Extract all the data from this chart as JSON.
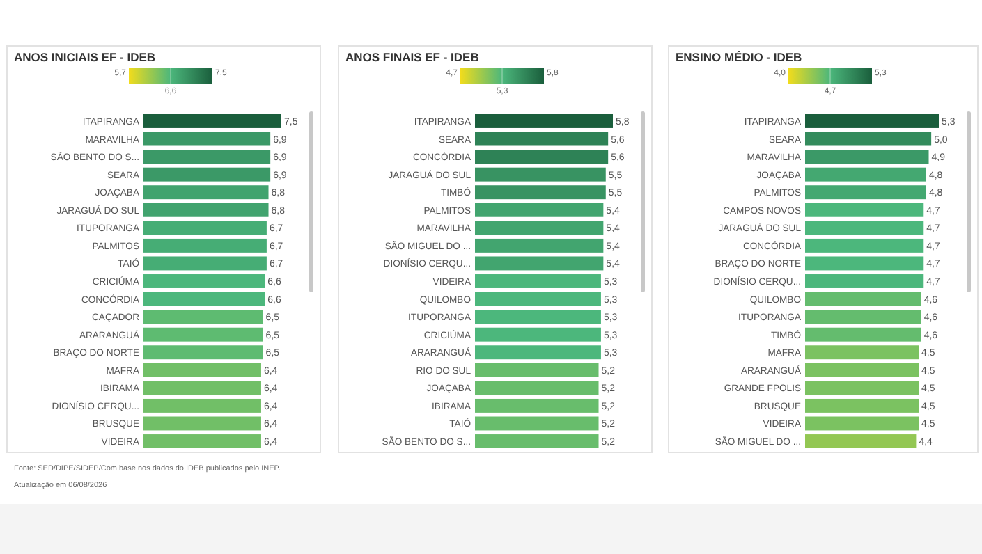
{
  "chart_data": [
    {
      "type": "bar",
      "orientation": "horizontal",
      "title": "ANOS INICIAIS EF - IDEB",
      "data_labels": true,
      "categories": [
        "ITAPIRANGA",
        "MARAVILHA",
        "SÃO BENTO DO S...",
        "SEARA",
        "JOAÇABA",
        "JARAGUÁ DO SUL",
        "ITUPORANGA",
        "PALMITOS",
        "TAIÓ",
        "CRICIÚMA",
        "CONCÓRDIA",
        "CAÇADOR",
        "ARARANGUÁ",
        "BRAÇO DO NORTE",
        "MAFRA",
        "IBIRAMA",
        "DIONÍSIO CERQU...",
        "BRUSQUE",
        "VIDEIRA"
      ],
      "values": [
        7.5,
        6.9,
        6.9,
        6.9,
        6.8,
        6.8,
        6.7,
        6.7,
        6.7,
        6.6,
        6.6,
        6.5,
        6.5,
        6.5,
        6.4,
        6.4,
        6.4,
        6.4,
        6.4
      ],
      "value_labels": [
        "7,5",
        "6,9",
        "6,9",
        "6,9",
        "6,8",
        "6,8",
        "6,7",
        "6,7",
        "6,7",
        "6,6",
        "6,6",
        "6,5",
        "6,5",
        "6,5",
        "6,4",
        "6,4",
        "6,4",
        "6,4",
        "6,4"
      ],
      "colors": [
        "#1a5e3c",
        "#3b9967",
        "#3b9967",
        "#3b9967",
        "#41a36e",
        "#41a36e",
        "#46ad75",
        "#46ad75",
        "#46ad75",
        "#4cb77c",
        "#4cb77c",
        "#5ebb71",
        "#5ebb71",
        "#5ebb71",
        "#71bf67",
        "#71bf67",
        "#71bf67",
        "#71bf67",
        "#71bf67"
      ],
      "annotations": [
        "5,7",
        "6,6",
        "7,5",
        "Fonte: SED/DIPE/SIDEP/Com base nos dados do IDEB publicados pelo INEP.",
        "Atualização em 06/08/2026"
      ]
    },
    {
      "type": "bar",
      "orientation": "horizontal",
      "title": "ANOS FINAIS EF - IDEB",
      "data_labels": true,
      "categories": [
        "ITAPIRANGA",
        "SEARA",
        "CONCÓRDIA",
        "JARAGUÁ DO SUL",
        "TIMBÓ",
        "PALMITOS",
        "MARAVILHA",
        "SÃO MIGUEL DO ...",
        "DIONÍSIO CERQU...",
        "VIDEIRA",
        "QUILOMBO",
        "ITUPORANGA",
        "CRICIÚMA",
        "ARARANGUÁ",
        "RIO DO SUL",
        "JOAÇABA",
        "IBIRAMA",
        "TAIÓ",
        "SÃO BENTO DO S..."
      ],
      "values": [
        5.8,
        5.6,
        5.6,
        5.5,
        5.5,
        5.4,
        5.4,
        5.4,
        5.4,
        5.3,
        5.3,
        5.3,
        5.3,
        5.3,
        5.2,
        5.2,
        5.2,
        5.2,
        5.2
      ],
      "value_labels": [
        "5,8",
        "5,6",
        "5,6",
        "5,5",
        "5,5",
        "5,4",
        "5,4",
        "5,4",
        "5,4",
        "5,3",
        "5,3",
        "5,3",
        "5,3",
        "5,3",
        "5,2",
        "5,2",
        "5,2",
        "5,2",
        "5,2"
      ],
      "colors": [
        "#1a5e3c",
        "#2e8256",
        "#2e8256",
        "#389362",
        "#389362",
        "#42a56f",
        "#42a56f",
        "#42a56f",
        "#42a56f",
        "#4cb77c",
        "#4cb77c",
        "#4cb77c",
        "#4cb77c",
        "#4cb77c",
        "#68bd6c",
        "#68bd6c",
        "#68bd6c",
        "#68bd6c",
        "#68bd6c"
      ],
      "annotations": [
        "4,7",
        "5,3",
        "5,8"
      ]
    },
    {
      "type": "bar",
      "orientation": "horizontal",
      "title": "ENSINO MÉDIO - IDEB",
      "data_labels": true,
      "categories": [
        "ITAPIRANGA",
        "SEARA",
        "MARAVILHA",
        "JOAÇABA",
        "PALMITOS",
        "CAMPOS NOVOS",
        "JARAGUÁ DO SUL",
        "CONCÓRDIA",
        "BRAÇO DO NORTE",
        "DIONÍSIO CERQU...",
        "QUILOMBO",
        "ITUPORANGA",
        "TIMBÓ",
        "MAFRA",
        "ARARANGUÁ",
        "GRANDE FPOLIS",
        "BRUSQUE",
        "VIDEIRA",
        "SÃO MIGUEL DO ..."
      ],
      "values": [
        5.3,
        5.0,
        4.9,
        4.8,
        4.8,
        4.7,
        4.7,
        4.7,
        4.7,
        4.7,
        4.6,
        4.6,
        4.6,
        4.5,
        4.5,
        4.5,
        4.5,
        4.5,
        4.4
      ],
      "value_labels": [
        "5,3",
        "5,0",
        "4,9",
        "4,8",
        "4,8",
        "4,7",
        "4,7",
        "4,7",
        "4,7",
        "4,7",
        "4,6",
        "4,6",
        "4,6",
        "4,5",
        "4,5",
        "4,5",
        "4,5",
        "4,5",
        "4,4"
      ],
      "colors": [
        "#1a5e3c",
        "#338b5c",
        "#3b9967",
        "#44a871",
        "#44a871",
        "#4cb77c",
        "#4cb77c",
        "#4cb77c",
        "#4cb77c",
        "#4cb77c",
        "#64bc6e",
        "#64bc6e",
        "#64bc6e",
        "#7bc261",
        "#7bc261",
        "#7bc261",
        "#7bc261",
        "#7bc261",
        "#93c753"
      ],
      "annotations": [
        "4,0",
        "4,7",
        "5,3"
      ]
    }
  ]
}
